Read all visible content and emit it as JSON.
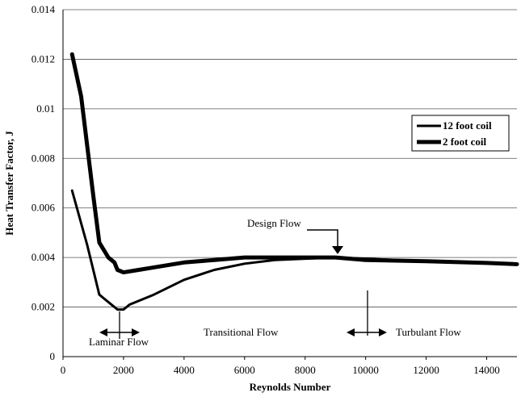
{
  "chart_data": {
    "type": "line",
    "xlabel": "Reynolds Number",
    "ylabel": "Heat Transfer Factor, J",
    "xlim": [
      0,
      15000
    ],
    "ylim": [
      0,
      0.014
    ],
    "x_ticks": [
      "0",
      "2000",
      "4000",
      "6000",
      "8000",
      "10000",
      "12000",
      "14000"
    ],
    "y_ticks": [
      "0",
      "0.002",
      "0.004",
      "0.006",
      "0.008",
      "0.01",
      "0.012",
      "0.014"
    ],
    "grid": "horizontal",
    "legend_position": "right",
    "series": [
      {
        "name": "12 foot coil",
        "points": [
          [
            300,
            0.0067
          ],
          [
            800,
            0.0045
          ],
          [
            1200,
            0.0025
          ],
          [
            1500,
            0.0022
          ],
          [
            1800,
            0.0019
          ],
          [
            2000,
            0.0019
          ],
          [
            2200,
            0.0021
          ],
          [
            3000,
            0.0025
          ],
          [
            4000,
            0.0031
          ],
          [
            5000,
            0.0035
          ],
          [
            6000,
            0.00375
          ],
          [
            7000,
            0.0039
          ],
          [
            8000,
            0.00395
          ],
          [
            9000,
            0.004
          ],
          [
            10000,
            0.00395
          ],
          [
            12000,
            0.00385
          ],
          [
            14000,
            0.00378
          ],
          [
            15000,
            0.00373
          ]
        ]
      },
      {
        "name": "2 foot coil",
        "points": [
          [
            300,
            0.0122
          ],
          [
            600,
            0.0105
          ],
          [
            1000,
            0.0065
          ],
          [
            1200,
            0.0046
          ],
          [
            1500,
            0.004
          ],
          [
            1700,
            0.0038
          ],
          [
            1800,
            0.0035
          ],
          [
            2000,
            0.0034
          ],
          [
            2500,
            0.0035
          ],
          [
            3000,
            0.0036
          ],
          [
            4000,
            0.0038
          ],
          [
            5000,
            0.0039
          ],
          [
            6000,
            0.004
          ],
          [
            7000,
            0.004
          ],
          [
            8000,
            0.004
          ],
          [
            9000,
            0.004
          ],
          [
            10000,
            0.0039
          ],
          [
            12000,
            0.00385
          ],
          [
            14000,
            0.00378
          ],
          [
            15000,
            0.00373
          ]
        ]
      }
    ],
    "annotations": [
      {
        "text": "Design Flow",
        "x": 9000,
        "y": 0.004
      },
      {
        "text": "Laminar Flow",
        "x": 2000
      },
      {
        "text": "Transitional Flow",
        "x": 6000
      },
      {
        "text": "Turbulant Flow",
        "x": 10000
      }
    ]
  }
}
